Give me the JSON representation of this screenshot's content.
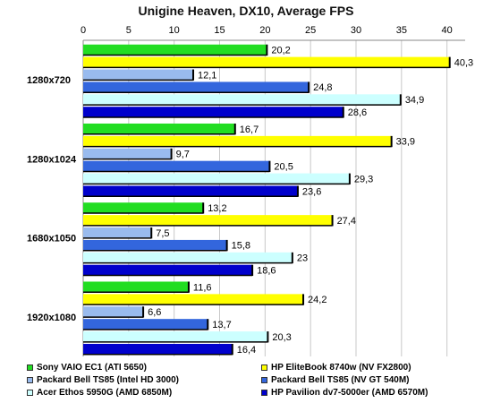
{
  "chart_data": {
    "type": "bar",
    "orientation": "horizontal",
    "title": "Unigine Heaven, DX10, Average FPS",
    "categories": [
      "1280x720",
      "1280x1024",
      "1680x1050",
      "1920x1080"
    ],
    "xlim": [
      0,
      42
    ],
    "xticks": [
      0,
      5,
      10,
      15,
      20,
      25,
      30,
      35,
      40
    ],
    "grid": true,
    "legend_position": "bottom",
    "series": [
      {
        "name": "Sony VAIO EC1 (ATI 5650)",
        "color": "#22dd22",
        "values": [
          20.2,
          16.7,
          13.2,
          11.6
        ],
        "labels": [
          "20,2",
          "16,7",
          "13,2",
          "11,6"
        ]
      },
      {
        "name": "HP EliteBook 8740w (NV FX2800)",
        "color": "#ffff00",
        "values": [
          40.3,
          33.9,
          27.4,
          24.2
        ],
        "labels": [
          "40,3",
          "33,9",
          "27,4",
          "24,2"
        ]
      },
      {
        "name": "Packard Bell TS85 (Intel HD 3000)",
        "color": "#99bbee",
        "values": [
          12.1,
          9.7,
          7.5,
          6.6
        ],
        "labels": [
          "12,1",
          "9,7",
          "7,5",
          "6,6"
        ]
      },
      {
        "name": "Packard Bell TS85 (NV GT 540M)",
        "color": "#3366dd",
        "values": [
          24.8,
          20.5,
          15.8,
          13.7
        ],
        "labels": [
          "24,8",
          "20,5",
          "15,8",
          "13,7"
        ]
      },
      {
        "name": "Acer Ethos 5950G (AMD 6850M)",
        "color": "#ccffff",
        "values": [
          34.9,
          29.3,
          23,
          20.3
        ],
        "labels": [
          "34,9",
          "29,3",
          "23",
          "20,3"
        ]
      },
      {
        "name": "HP Pavilion dv7-5000er (AMD 6570M)",
        "color": "#0000cc",
        "values": [
          28.6,
          23.6,
          18.6,
          16.4
        ],
        "labels": [
          "28,6",
          "23,6",
          "18,6",
          "16,4"
        ]
      }
    ]
  }
}
